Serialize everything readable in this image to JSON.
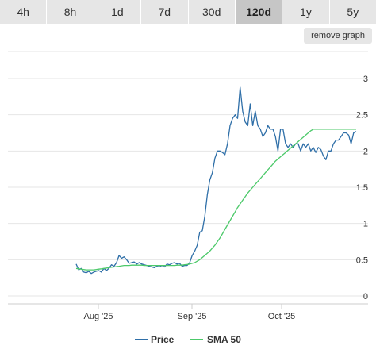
{
  "tabs": [
    "4h",
    "8h",
    "1d",
    "7d",
    "30d",
    "120d",
    "1y",
    "5y"
  ],
  "active_tab": "120d",
  "remove_graph_label": "remove graph",
  "chart_data": {
    "type": "line",
    "x_tick_labels": [
      "Aug '25",
      "Sep '25",
      "Oct '25"
    ],
    "y_tick_labels": [
      "0",
      "0.5",
      "1",
      "1.5",
      "2",
      "2.5",
      "3"
    ],
    "ylim": [
      0,
      3
    ],
    "y_axis_position": "right",
    "grid": "horizontal",
    "legend_placement": "bottom-center",
    "series": [
      {
        "name": "Price",
        "color": "#2f6fa8",
        "values": [
          0.44,
          0.36,
          0.38,
          0.33,
          0.32,
          0.34,
          0.31,
          0.33,
          0.34,
          0.35,
          0.33,
          0.38,
          0.35,
          0.38,
          0.43,
          0.41,
          0.46,
          0.56,
          0.52,
          0.54,
          0.5,
          0.45,
          0.46,
          0.47,
          0.44,
          0.46,
          0.44,
          0.43,
          0.42,
          0.41,
          0.4,
          0.39,
          0.41,
          0.4,
          0.42,
          0.4,
          0.44,
          0.43,
          0.45,
          0.46,
          0.44,
          0.45,
          0.41,
          0.42,
          0.42,
          0.46,
          0.56,
          0.62,
          0.7,
          0.88,
          0.9,
          1.1,
          1.4,
          1.6,
          1.7,
          1.9,
          2.0,
          2.0,
          1.98,
          1.95,
          2.1,
          2.35,
          2.45,
          2.5,
          2.45,
          2.88,
          2.55,
          2.4,
          2.35,
          2.65,
          2.35,
          2.55,
          2.35,
          2.3,
          2.2,
          2.25,
          2.35,
          2.3,
          2.3,
          2.2,
          2.0,
          2.3,
          2.3,
          2.1,
          2.05,
          2.1,
          2.05,
          2.1,
          2.1,
          2.0,
          2.1,
          2.05,
          2.1,
          2.0,
          2.05,
          1.98,
          2.05,
          2.02,
          1.93,
          1.88,
          2.0,
          2.0,
          2.1,
          2.15,
          2.15,
          2.2,
          2.25,
          2.25,
          2.22,
          2.1,
          2.25,
          2.27
        ]
      },
      {
        "name": "SMA 50",
        "color": "#4cc96a",
        "values": [
          0.38,
          0.375,
          0.37,
          0.365,
          0.36,
          0.36,
          0.36,
          0.36,
          0.365,
          0.37,
          0.375,
          0.38,
          0.385,
          0.39,
          0.395,
          0.4,
          0.405,
          0.41,
          0.415,
          0.42,
          0.42,
          0.42,
          0.425,
          0.425,
          0.425,
          0.425,
          0.425,
          0.42,
          0.42,
          0.42,
          0.42,
          0.42,
          0.42,
          0.42,
          0.42,
          0.42,
          0.42,
          0.42,
          0.42,
          0.42,
          0.425,
          0.425,
          0.425,
          0.43,
          0.435,
          0.44,
          0.45,
          0.46,
          0.48,
          0.5,
          0.53,
          0.56,
          0.59,
          0.62,
          0.66,
          0.7,
          0.75,
          0.8,
          0.86,
          0.92,
          0.98,
          1.04,
          1.1,
          1.16,
          1.22,
          1.27,
          1.32,
          1.37,
          1.42,
          1.46,
          1.5,
          1.54,
          1.58,
          1.62,
          1.66,
          1.7,
          1.74,
          1.78,
          1.82,
          1.86,
          1.89,
          1.92,
          1.95,
          1.98,
          2.01,
          2.04,
          2.07,
          2.1,
          2.13,
          2.16,
          2.19,
          2.22,
          2.25,
          2.28,
          2.3,
          2.3,
          2.3,
          2.3,
          2.3,
          2.3,
          2.3,
          2.3,
          2.3,
          2.3,
          2.3,
          2.3,
          2.3,
          2.3,
          2.3,
          2.3,
          2.3,
          2.3
        ]
      }
    ]
  }
}
